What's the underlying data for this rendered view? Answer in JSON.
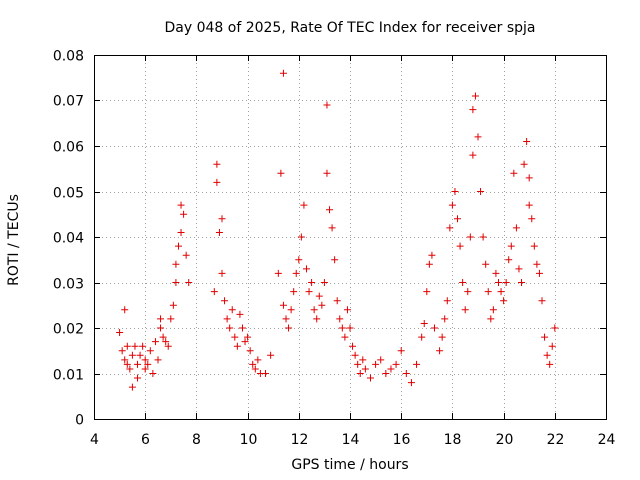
{
  "chart_data": {
    "type": "scatter",
    "title": "Day 048 of 2025, Rate Of TEC Index for receiver spja",
    "xlabel": "GPS time / hours",
    "ylabel": "ROTI / TECUs",
    "xlim": [
      4,
      24
    ],
    "ylim": [
      0,
      0.08
    ],
    "xticks": [
      "4",
      "6",
      "8",
      "10",
      "12",
      "14",
      "16",
      "18",
      "20",
      "22",
      "24"
    ],
    "yticks": [
      "0",
      "0.01",
      "0.02",
      "0.03",
      "0.04",
      "0.05",
      "0.06",
      "0.07",
      "0.08"
    ],
    "grid": true,
    "marker": "plus",
    "color": "#e00000",
    "series": [
      {
        "name": "ROTI",
        "x": [
          5.0,
          5.1,
          5.2,
          5.2,
          5.3,
          5.3,
          5.4,
          5.5,
          5.5,
          5.6,
          5.7,
          5.7,
          5.8,
          5.9,
          6.0,
          6.0,
          6.1,
          6.2,
          6.3,
          6.4,
          6.5,
          6.6,
          6.6,
          6.7,
          6.8,
          6.9,
          7.0,
          7.1,
          7.2,
          7.2,
          7.3,
          7.4,
          7.4,
          7.5,
          7.6,
          7.7,
          8.7,
          8.8,
          8.8,
          8.9,
          9.0,
          9.0,
          9.1,
          9.2,
          9.3,
          9.4,
          9.5,
          9.6,
          9.7,
          9.8,
          9.9,
          10.0,
          10.1,
          10.2,
          10.3,
          10.4,
          10.5,
          10.7,
          10.9,
          11.2,
          11.3,
          11.4,
          11.4,
          11.5,
          11.6,
          11.7,
          11.8,
          11.9,
          12.0,
          12.1,
          12.2,
          12.3,
          12.4,
          12.5,
          12.6,
          12.7,
          12.8,
          12.9,
          13.0,
          13.1,
          13.1,
          13.2,
          13.3,
          13.4,
          13.5,
          13.6,
          13.7,
          13.8,
          13.9,
          14.0,
          14.1,
          14.2,
          14.3,
          14.4,
          14.5,
          14.6,
          14.8,
          15.0,
          15.2,
          15.4,
          15.6,
          15.8,
          16.0,
          16.2,
          16.4,
          16.6,
          16.8,
          16.9,
          17.0,
          17.1,
          17.2,
          17.3,
          17.5,
          17.6,
          17.7,
          17.8,
          17.9,
          18.0,
          18.1,
          18.2,
          18.3,
          18.4,
          18.5,
          18.6,
          18.7,
          18.8,
          18.8,
          18.9,
          19.0,
          19.1,
          19.2,
          19.3,
          19.4,
          19.5,
          19.6,
          19.7,
          19.8,
          19.9,
          20.0,
          20.1,
          20.2,
          20.3,
          20.4,
          20.5,
          20.6,
          20.7,
          20.8,
          20.9,
          21.0,
          21.0,
          21.1,
          21.2,
          21.3,
          21.4,
          21.5,
          21.6,
          21.7,
          21.8,
          21.9,
          22.0
        ],
        "y": [
          0.019,
          0.015,
          0.024,
          0.013,
          0.012,
          0.016,
          0.011,
          0.007,
          0.014,
          0.016,
          0.012,
          0.009,
          0.014,
          0.016,
          0.013,
          0.011,
          0.012,
          0.015,
          0.01,
          0.017,
          0.013,
          0.02,
          0.022,
          0.018,
          0.017,
          0.016,
          0.022,
          0.025,
          0.03,
          0.034,
          0.038,
          0.047,
          0.041,
          0.045,
          0.036,
          0.03,
          0.028,
          0.056,
          0.052,
          0.041,
          0.044,
          0.032,
          0.026,
          0.022,
          0.02,
          0.024,
          0.018,
          0.016,
          0.023,
          0.02,
          0.017,
          0.018,
          0.015,
          0.012,
          0.011,
          0.013,
          0.01,
          0.01,
          0.014,
          0.032,
          0.054,
          0.076,
          0.025,
          0.022,
          0.02,
          0.024,
          0.028,
          0.032,
          0.035,
          0.04,
          0.047,
          0.033,
          0.028,
          0.03,
          0.024,
          0.022,
          0.027,
          0.025,
          0.03,
          0.069,
          0.054,
          0.046,
          0.042,
          0.035,
          0.026,
          0.022,
          0.02,
          0.018,
          0.024,
          0.02,
          0.016,
          0.014,
          0.012,
          0.01,
          0.013,
          0.011,
          0.009,
          0.012,
          0.013,
          0.01,
          0.011,
          0.012,
          0.015,
          0.01,
          0.008,
          0.012,
          0.018,
          0.021,
          0.028,
          0.034,
          0.036,
          0.02,
          0.015,
          0.018,
          0.022,
          0.026,
          0.042,
          0.047,
          0.05,
          0.044,
          0.038,
          0.03,
          0.024,
          0.028,
          0.04,
          0.058,
          0.068,
          0.071,
          0.062,
          0.05,
          0.04,
          0.034,
          0.028,
          0.022,
          0.024,
          0.032,
          0.03,
          0.028,
          0.026,
          0.03,
          0.035,
          0.038,
          0.054,
          0.042,
          0.033,
          0.03,
          0.056,
          0.061,
          0.053,
          0.047,
          0.044,
          0.038,
          0.034,
          0.032,
          0.026,
          0.018,
          0.014,
          0.012,
          0.016,
          0.02
        ]
      }
    ]
  }
}
